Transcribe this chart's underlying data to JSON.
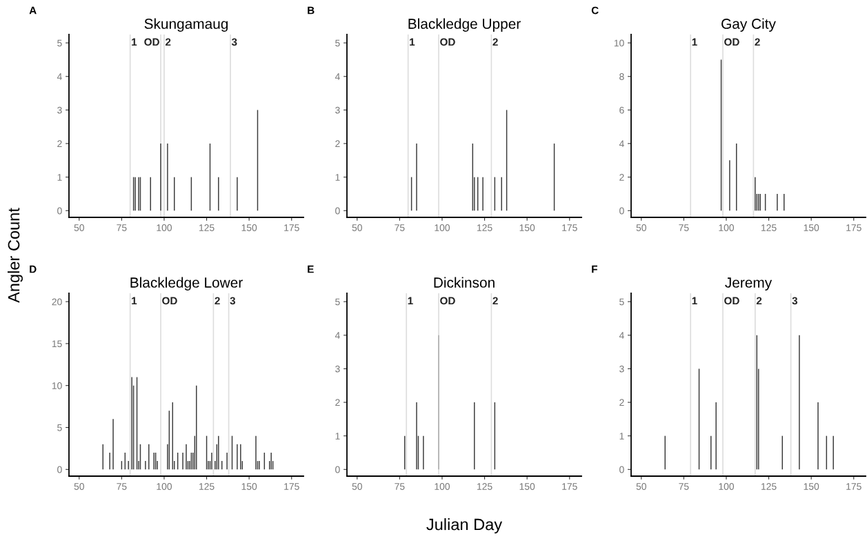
{
  "chart_data": [
    {
      "type": "bar",
      "title": "Skungamaug",
      "ylabel": "Angler Count",
      "x": [
        82,
        83,
        85,
        86,
        92,
        98,
        102,
        106,
        116,
        127,
        132,
        143,
        155
      ],
      "values": [
        1,
        1,
        1,
        1,
        1,
        2,
        2,
        1,
        1,
        2,
        1,
        1,
        3
      ],
      "color": "#3a3a3a",
      "xlim": [
        44,
        182
      ],
      "xticks": [
        50,
        75,
        100,
        125,
        150,
        175
      ],
      "ylim": [
        -0.2,
        5.25
      ],
      "yticks": [
        0,
        1,
        2,
        3,
        4,
        5
      ],
      "grid": false,
      "ref_lines": [
        {
          "axis": "x",
          "value": 80,
          "color": "#dddddd"
        },
        {
          "axis": "x",
          "value": 98,
          "color": "#dddddd"
        },
        {
          "axis": "x",
          "value": 100,
          "color": "#dddddd"
        },
        {
          "axis": "x",
          "value": 139,
          "color": "#dddddd"
        }
      ],
      "annotations": [
        "A",
        "1",
        "OD",
        "2",
        "3"
      ]
    },
    {
      "type": "bar",
      "title": "Blackledge Upper",
      "x": [
        82,
        85,
        118,
        119,
        121,
        124,
        131,
        135,
        138,
        166
      ],
      "values": [
        1,
        2,
        2,
        1,
        1,
        1,
        1,
        1,
        3,
        2
      ],
      "color": "#3a3a3a",
      "xlim": [
        44,
        182
      ],
      "xticks": [
        50,
        75,
        100,
        125,
        150,
        175
      ],
      "ylim": [
        -0.2,
        5.25
      ],
      "yticks": [
        0,
        1,
        2,
        3,
        4,
        5
      ],
      "grid": false,
      "ref_lines": [
        {
          "axis": "x",
          "value": 80,
          "color": "#dddddd"
        },
        {
          "axis": "x",
          "value": 98,
          "color": "#dddddd"
        },
        {
          "axis": "x",
          "value": 129,
          "color": "#dddddd"
        }
      ],
      "annotations": [
        "B",
        "1",
        "OD",
        "2"
      ]
    },
    {
      "type": "bar",
      "title": "Gay City",
      "x": [
        97,
        102,
        106,
        117,
        118,
        119,
        120,
        123,
        130,
        134
      ],
      "values": [
        9,
        3,
        4,
        2,
        1,
        1,
        1,
        1,
        1,
        1
      ],
      "color": "#3a3a3a",
      "xlim": [
        44,
        182
      ],
      "xticks": [
        50,
        75,
        100,
        125,
        150,
        175
      ],
      "ylim": [
        -0.4,
        10.5
      ],
      "yticks": [
        0,
        2,
        4,
        6,
        8,
        10
      ],
      "grid": false,
      "ref_lines": [
        {
          "axis": "x",
          "value": 79,
          "color": "#dddddd"
        },
        {
          "axis": "x",
          "value": 98,
          "color": "#dddddd"
        },
        {
          "axis": "x",
          "value": 116,
          "color": "#dddddd"
        }
      ],
      "annotations": [
        "C",
        "1",
        "OD",
        "2"
      ]
    },
    {
      "type": "bar",
      "title": "Blackledge Lower",
      "x": [
        64,
        68,
        70,
        75,
        77,
        79,
        81,
        82,
        84,
        85,
        86,
        89,
        91,
        94,
        95,
        96,
        102,
        103,
        105,
        106,
        108,
        111,
        113,
        114,
        115,
        116,
        117,
        118,
        119,
        125,
        126,
        127,
        128,
        130,
        131,
        132,
        134,
        137,
        140,
        143,
        145,
        146,
        154,
        155,
        156,
        159,
        162,
        163,
        164
      ],
      "values": [
        3,
        2,
        6,
        1,
        2,
        1,
        11,
        10,
        11,
        1,
        3,
        1,
        3,
        2,
        2,
        1,
        3,
        7,
        8,
        1,
        2,
        2,
        3,
        1,
        1,
        2,
        2,
        4,
        10,
        4,
        1,
        1,
        2,
        1,
        3,
        4,
        1,
        2,
        4,
        3,
        3,
        1,
        4,
        1,
        1,
        2,
        1,
        2,
        1
      ],
      "color": "#3a3a3a",
      "xlim": [
        44,
        182
      ],
      "xticks": [
        50,
        75,
        100,
        125,
        150,
        175
      ],
      "ylim": [
        -0.8,
        21
      ],
      "yticks": [
        0,
        5,
        10,
        15,
        20
      ],
      "grid": false,
      "ref_lines": [
        {
          "axis": "x",
          "value": 80,
          "color": "#dddddd"
        },
        {
          "axis": "x",
          "value": 98,
          "color": "#dddddd"
        },
        {
          "axis": "x",
          "value": 129,
          "color": "#dddddd"
        },
        {
          "axis": "x",
          "value": 138,
          "color": "#dddddd"
        }
      ],
      "annotations": [
        "D",
        "1",
        "OD",
        "2",
        "3"
      ]
    },
    {
      "type": "bar",
      "title": "Dickinson",
      "xlabel": "Julian Day",
      "x": [
        78,
        85,
        86,
        89,
        98,
        119,
        131
      ],
      "values": [
        1,
        2,
        1,
        1,
        4,
        2,
        2
      ],
      "colors": [
        "#3a3a3a",
        "#3a3a3a",
        "#3a3a3a",
        "#3a3a3a",
        "#a8a8a8",
        "#3a3a3a",
        "#3a3a3a"
      ],
      "xlim": [
        44,
        182
      ],
      "xticks": [
        50,
        75,
        100,
        125,
        150,
        175
      ],
      "ylim": [
        -0.2,
        5.25
      ],
      "yticks": [
        0,
        1,
        2,
        3,
        4,
        5
      ],
      "grid": false,
      "ref_lines": [
        {
          "axis": "x",
          "value": 79,
          "color": "#dddddd"
        },
        {
          "axis": "x",
          "value": 98,
          "color": "#dddddd"
        },
        {
          "axis": "x",
          "value": 129,
          "color": "#dddddd"
        }
      ],
      "annotations": [
        "E",
        "1",
        "OD",
        "2"
      ]
    },
    {
      "type": "bar",
      "title": "Jeremy",
      "x": [
        64,
        84,
        91,
        94,
        118,
        119,
        133,
        143,
        154,
        159,
        163
      ],
      "values": [
        1,
        3,
        1,
        2,
        4,
        3,
        1,
        4,
        2,
        1,
        1
      ],
      "color": "#3a3a3a",
      "xlim": [
        44,
        182
      ],
      "xticks": [
        50,
        75,
        100,
        125,
        150,
        175
      ],
      "ylim": [
        -0.2,
        5.25
      ],
      "yticks": [
        0,
        1,
        2,
        3,
        4,
        5
      ],
      "grid": false,
      "ref_lines": [
        {
          "axis": "x",
          "value": 79,
          "color": "#dddddd"
        },
        {
          "axis": "x",
          "value": 98,
          "color": "#dddddd"
        },
        {
          "axis": "x",
          "value": 117,
          "color": "#dddddd"
        },
        {
          "axis": "x",
          "value": 138,
          "color": "#dddddd"
        }
      ],
      "annotations": [
        "F",
        "1",
        "OD",
        "2",
        "3"
      ]
    }
  ]
}
